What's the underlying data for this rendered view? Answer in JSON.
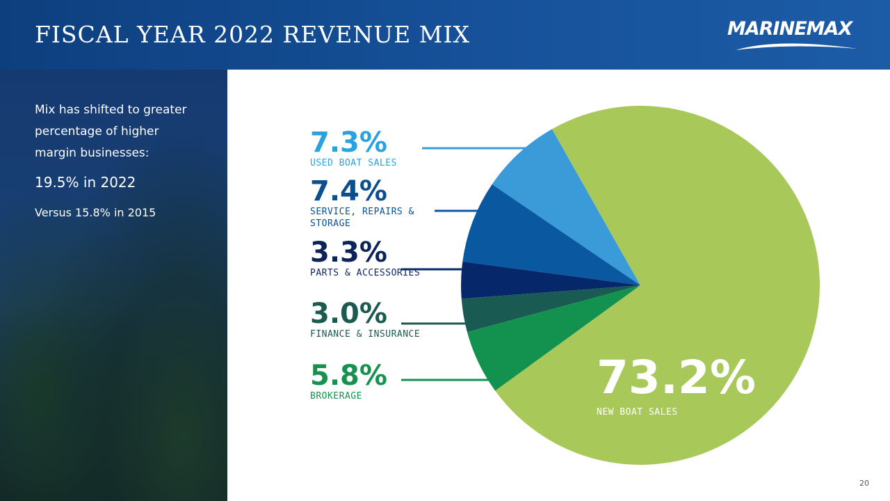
{
  "header": {
    "title": "FISCAL YEAR 2022 REVENUE MIX",
    "logo": "MARINEMAX"
  },
  "sidebar": {
    "intro": "Mix has shifted to greater percentage of higher margin businesses:",
    "highlight": "19.5% in 2022",
    "comparison": "Versus 15.8% in 2015"
  },
  "chart_data": {
    "type": "pie",
    "categories": [
      "USED BOAT SALES",
      "SERVICE, REPAIRS & STORAGE",
      "PARTS & ACCESSORIES",
      "FINANCE & INSURANCE",
      "BROKERAGE",
      "NEW BOAT SALES"
    ],
    "values": [
      7.3,
      7.4,
      3.3,
      3.0,
      5.8,
      73.2
    ],
    "value_labels": [
      "7.3%",
      "7.4%",
      "3.3%",
      "3.0%",
      "5.8%",
      "73.2%"
    ],
    "colors": [
      "#3b9ad8",
      "#0a58a0",
      "#06286a",
      "#195a52",
      "#13924f",
      "#a8c95a"
    ]
  },
  "footer": {
    "page_number": "20"
  }
}
